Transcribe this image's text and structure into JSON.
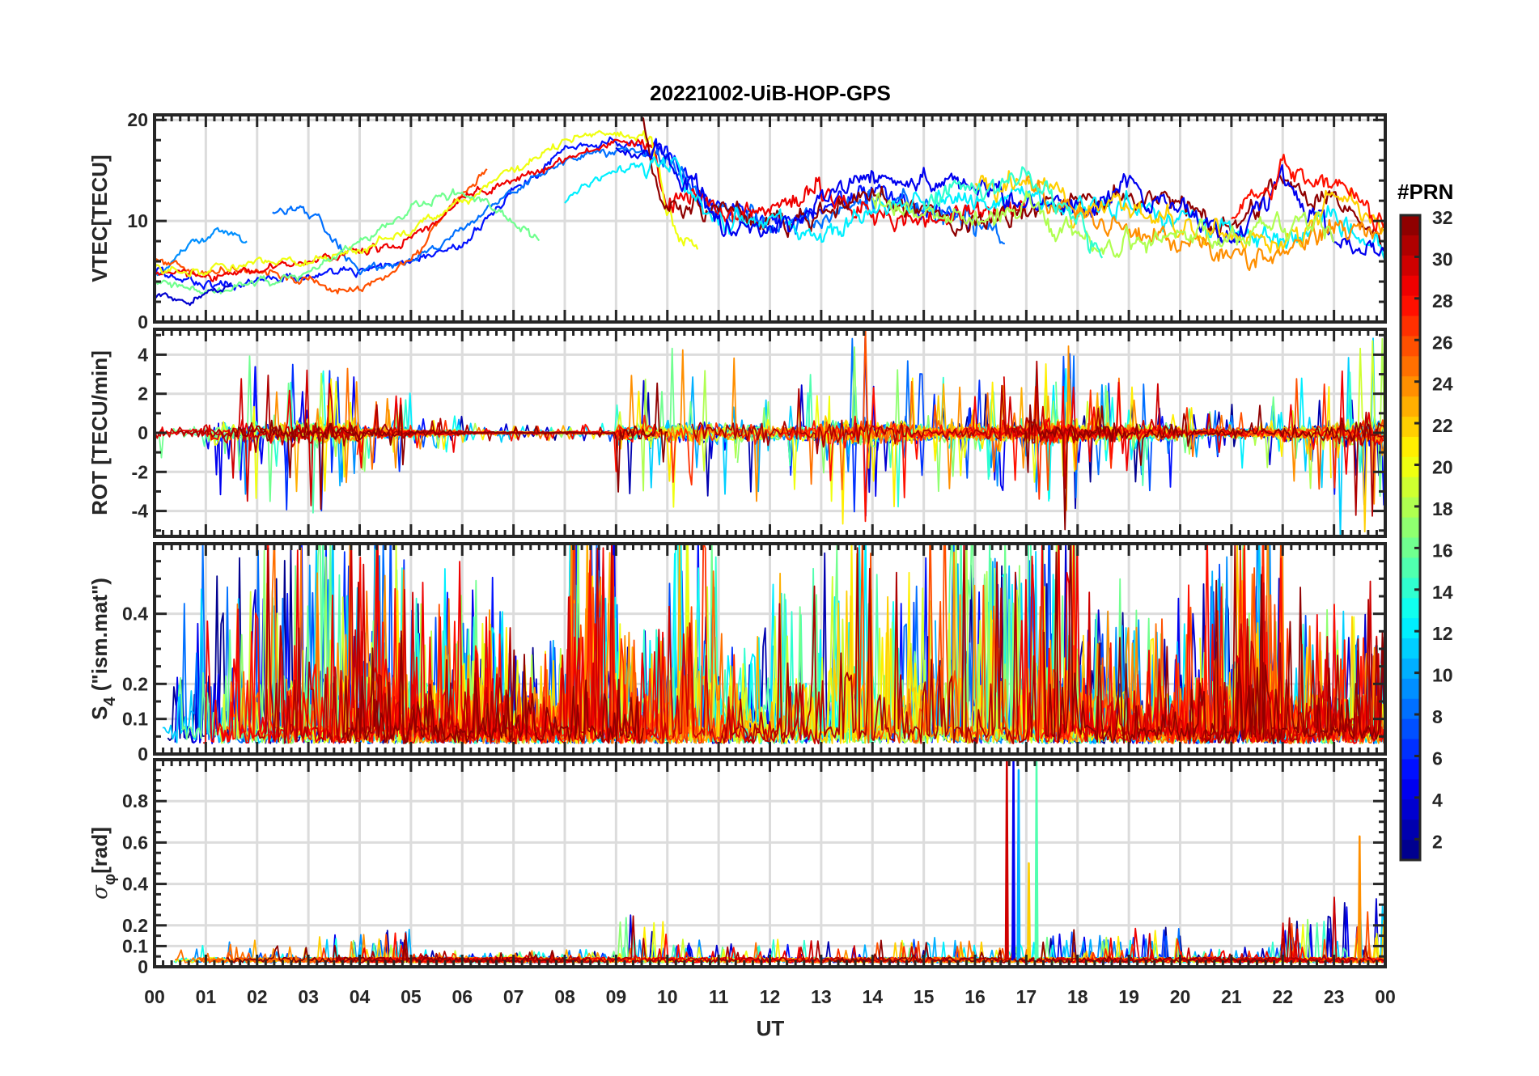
{
  "chart_data": {
    "type": "line",
    "title": "20221002-UiB-HOP-GPS",
    "xlabel": "UT",
    "xlim": [
      0,
      24
    ],
    "x_tick_labels": [
      "00",
      "01",
      "02",
      "03",
      "04",
      "05",
      "06",
      "07",
      "08",
      "09",
      "10",
      "11",
      "12",
      "13",
      "14",
      "15",
      "16",
      "17",
      "18",
      "19",
      "20",
      "21",
      "22",
      "23",
      "00"
    ],
    "grid": true,
    "colorbar": {
      "label": "#PRN",
      "colormap": "jet",
      "range": [
        1,
        32
      ],
      "levels": 32,
      "tick_labels": [
        "2",
        "4",
        "6",
        "8",
        "10",
        "12",
        "14",
        "16",
        "18",
        "20",
        "22",
        "24",
        "26",
        "28",
        "30",
        "32"
      ],
      "placement": "right"
    },
    "panels": [
      {
        "id": "vtec",
        "ylabel": "VTEC[TECU]",
        "ylim": [
          0,
          20.5
        ],
        "yticks": [
          0,
          10,
          20
        ],
        "y_tick_labels": [
          "0",
          "10",
          "20"
        ],
        "series": [
          {
            "prn": 5,
            "t": [
              0,
              1,
              2,
              3,
              4,
              5,
              6,
              7,
              8,
              9,
              10,
              11,
              12,
              13,
              14,
              15,
              16
            ],
            "v": [
              5,
              3.5,
              4,
              4.5,
              5,
              6,
              7.5,
              13,
              17,
              18,
              17,
              11,
              10,
              11,
              13,
              11,
              10
            ]
          },
          {
            "prn": 9,
            "t": [
              0,
              0.6,
              1.2,
              1.8
            ],
            "v": [
              5,
              7,
              9,
              8
            ]
          },
          {
            "prn": 8,
            "t": [
              2.3,
              2.8,
              3.2,
              4,
              5,
              6,
              7,
              8,
              9,
              10,
              11,
              12,
              13,
              14,
              15,
              16,
              16.6
            ],
            "v": [
              11,
              11,
              10,
              5,
              6,
              9,
              13,
              16,
              17,
              16,
              11,
              10,
              10,
              12,
              11,
              10,
              9
            ]
          },
          {
            "prn": 26,
            "t": [
              0,
              1,
              2,
              3,
              4,
              5,
              6,
              6.5
            ],
            "v": [
              6,
              5,
              5,
              4,
              3,
              6,
              13,
              15
            ]
          },
          {
            "prn": 29,
            "t": [
              0,
              1,
              2,
              3,
              4,
              5,
              6,
              7,
              8,
              9,
              9.7,
              10,
              11,
              12,
              13,
              14,
              15,
              16,
              17
            ],
            "v": [
              5,
              4.5,
              5,
              6,
              7,
              8,
              12,
              14,
              16,
              18,
              18,
              12,
              11,
              11,
              13,
              11,
              10,
              11,
              11
            ]
          },
          {
            "prn": 20,
            "t": [
              0,
              1,
              2,
              3,
              4,
              5,
              6,
              7,
              8,
              9,
              9.7,
              10.1,
              10.6
            ],
            "v": [
              5,
              5,
              6,
              6,
              7,
              9,
              12,
              15,
              18,
              19,
              18,
              9,
              8
            ]
          },
          {
            "prn": 16,
            "t": [
              0,
              1,
              2,
              3,
              4,
              5,
              6,
              7,
              7.5
            ],
            "v": [
              4,
              3,
              4,
              5,
              8,
              11,
              13,
              10,
              8
            ]
          },
          {
            "prn": 32,
            "t": [
              9.5,
              10,
              11,
              12,
              13,
              14,
              15,
              16,
              17,
              18,
              19,
              20,
              21,
              22,
              23,
              24
            ],
            "v": [
              20,
              11,
              11,
              10,
              11,
              13,
              11,
              10,
              11,
              12,
              13,
              12,
              9,
              14,
              12,
              8
            ]
          },
          {
            "prn": 12,
            "t": [
              8,
              9,
              10,
              11,
              12,
              13,
              14,
              15,
              16,
              17,
              18,
              19,
              20,
              21,
              22,
              23,
              24
            ],
            "v": [
              12,
              15,
              16,
              10,
              10,
              9,
              11,
              12,
              12,
              13,
              11,
              12,
              10,
              9,
              8,
              10,
              7
            ]
          },
          {
            "prn": 4,
            "t": [
              9,
              10,
              11,
              12,
              13,
              14,
              15,
              16,
              17,
              18,
              19,
              20,
              21,
              22,
              23,
              24
            ],
            "v": [
              17,
              16,
              10,
              9,
              12,
              15,
              14,
              13,
              12,
              11,
              13,
              11,
              8,
              14,
              8,
              6
            ]
          },
          {
            "prn": 22,
            "t": [
              16,
              17,
              18,
              19,
              20,
              21,
              22,
              23,
              24
            ],
            "v": [
              13,
              15,
              11,
              12,
              9,
              9,
              7,
              13,
              9
            ]
          },
          {
            "prn": 24,
            "t": [
              17,
              18,
              19,
              20,
              21,
              22,
              23,
              24
            ],
            "v": [
              14,
              11,
              9,
              8,
              7,
              6,
              10,
              9
            ]
          },
          {
            "prn": 18,
            "t": [
              14,
              15,
              16,
              17,
              18,
              19,
              20,
              21,
              22,
              23
            ],
            "v": [
              12,
              11,
              10,
              12,
              8,
              8,
              9,
              8,
              10,
              9
            ]
          },
          {
            "prn": 14,
            "t": [
              15,
              16,
              17,
              18,
              18.5
            ],
            "v": [
              12,
              13,
              14,
              10,
              7
            ]
          },
          {
            "prn": 28,
            "t": [
              21,
              22,
              23,
              24
            ],
            "v": [
              10,
              15,
              14,
              9
            ]
          },
          {
            "prn": 3,
            "t": [
              0,
              0.5,
              1,
              1.5
            ],
            "v": [
              3,
              2,
              3,
              4
            ]
          }
        ]
      },
      {
        "id": "rot",
        "ylabel": "ROT [TECU/min]",
        "ylim": [
          -5.3,
          5.3
        ],
        "yticks": [
          -4,
          -2,
          0,
          2,
          4
        ],
        "y_tick_labels": [
          "-4",
          "-2",
          "0",
          "2",
          "4"
        ],
        "hourly_peak_amplitude": [
          2,
          4,
          4,
          4,
          2,
          1,
          0.5,
          0.4,
          0.5,
          3,
          4,
          4,
          3,
          5,
          4,
          3,
          3,
          5,
          3,
          3,
          1.5,
          2,
          3,
          5
        ]
      },
      {
        "id": "s4",
        "ylabel": "S4 (\"ism.mat\")",
        "ylabel_main": "S",
        "ylabel_sub": "4",
        "ylabel_rest": " (\"ism.mat\")",
        "ylim": [
          0,
          0.6
        ],
        "yticks": [
          0,
          0.1,
          0.2,
          0.4
        ],
        "y_tick_labels": [
          "0",
          "0.1",
          "0.2",
          "0.4"
        ],
        "hourly_peak": [
          0.6,
          0.5,
          0.5,
          0.55,
          0.55,
          0.4,
          0.35,
          0.25,
          0.6,
          0.3,
          0.6,
          0.25,
          0.45,
          0.6,
          0.45,
          0.6,
          0.5,
          0.6,
          0.35,
          0.3,
          0.45,
          0.6,
          0.35,
          0.35
        ]
      },
      {
        "id": "sigma_phi",
        "ylabel": "σφ[rad]",
        "ylabel_main": "σ",
        "ylabel_sub": "φ",
        "ylabel_rest": "[rad]",
        "ylim": [
          0,
          1
        ],
        "yticks": [
          0,
          0.1,
          0.2,
          0.4,
          0.6,
          0.8
        ],
        "y_tick_labels": [
          "0",
          "0.1",
          "0.2",
          "0.4",
          "0.6",
          "0.8"
        ],
        "hourly_peak": [
          0.1,
          0.13,
          0.08,
          0.22,
          0.18,
          0.06,
          0.05,
          0.05,
          0.06,
          0.27,
          0.12,
          0.1,
          0.12,
          0.12,
          0.12,
          0.15,
          0.1,
          0.2,
          0.15,
          0.2,
          0.06,
          0.1,
          0.25,
          0.4
        ],
        "spikes": [
          {
            "t": 16.62,
            "v": 1.0
          },
          {
            "t": 16.75,
            "v": 1.0
          },
          {
            "t": 16.85,
            "v": 0.95
          },
          {
            "t": 17.05,
            "v": 0.5
          },
          {
            "t": 17.2,
            "v": 1.0
          },
          {
            "t": 23.5,
            "v": 0.63
          }
        ]
      }
    ]
  }
}
